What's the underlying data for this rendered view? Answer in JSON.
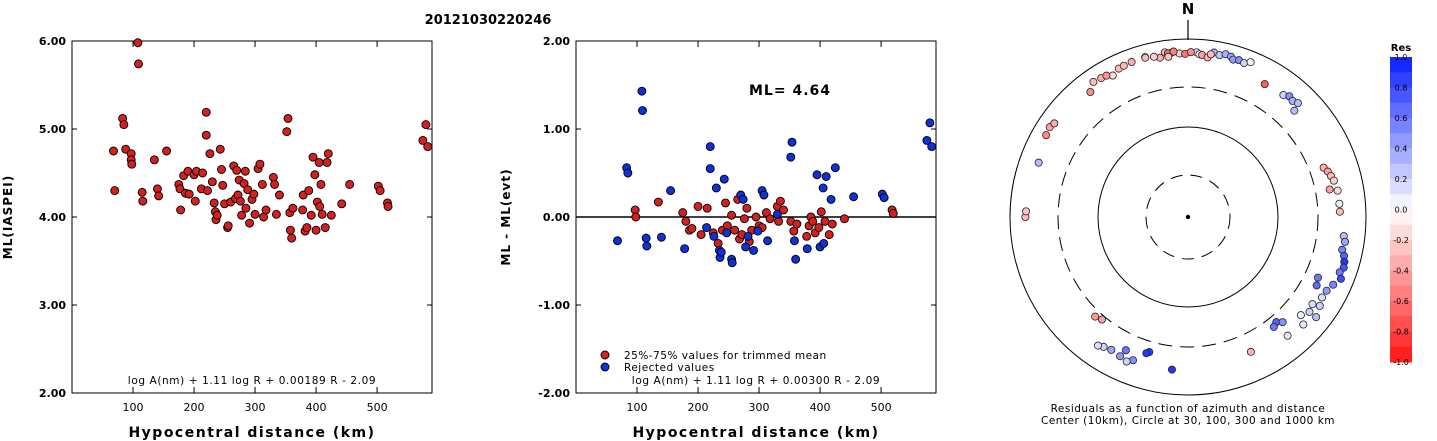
{
  "title": "20121030220246",
  "chart_data": [
    {
      "type": "scatter",
      "id": "left",
      "ylabel": "ML(IASPEI)",
      "xlabel": "Hypocentral distance (km)",
      "xlim": [
        0,
        590
      ],
      "ylim": [
        2.0,
        6.0
      ],
      "xticks": [
        100,
        200,
        300,
        400,
        500
      ],
      "yticks": [
        "2.00",
        "3.00",
        "4.00",
        "5.00",
        "6.00"
      ],
      "formula": "log A(nm) + 1.11 log R + 0.00189 R - 2.09",
      "colors": {
        "accepted": "#d42020",
        "rejected": "#1030d8"
      },
      "points_accepted": [
        [
          68,
          4.75
        ],
        [
          70,
          4.3
        ],
        [
          83,
          5.12
        ],
        [
          85,
          5.05
        ],
        [
          88,
          4.77
        ],
        [
          97,
          4.72
        ],
        [
          97,
          4.65
        ],
        [
          98,
          4.6
        ],
        [
          108,
          5.98
        ],
        [
          109,
          5.74
        ],
        [
          115,
          4.28
        ],
        [
          116,
          4.18
        ],
        [
          135,
          4.65
        ],
        [
          140,
          4.32
        ],
        [
          142,
          4.24
        ],
        [
          155,
          4.75
        ],
        [
          175,
          4.37
        ],
        [
          177,
          4.32
        ],
        [
          178,
          4.08
        ],
        [
          183,
          4.47
        ],
        [
          186,
          4.27
        ],
        [
          190,
          4.52
        ],
        [
          192,
          4.26
        ],
        [
          200,
          4.48
        ],
        [
          202,
          4.18
        ],
        [
          204,
          4.52
        ],
        [
          212,
          4.32
        ],
        [
          214,
          4.5
        ],
        [
          220,
          4.93
        ],
        [
          220,
          5.19
        ],
        [
          222,
          4.3
        ],
        [
          226,
          4.72
        ],
        [
          230,
          4.4
        ],
        [
          233,
          4.16
        ],
        [
          235,
          4.06
        ],
        [
          236,
          3.97
        ],
        [
          238,
          4.02
        ],
        [
          243,
          4.77
        ],
        [
          245,
          4.54
        ],
        [
          247,
          4.36
        ],
        [
          250,
          4.15
        ],
        [
          255,
          3.88
        ],
        [
          256,
          3.9
        ],
        [
          260,
          4.17
        ],
        [
          265,
          4.58
        ],
        [
          268,
          4.21
        ],
        [
          270,
          4.53
        ],
        [
          272,
          4.25
        ],
        [
          274,
          4.42
        ],
        [
          276,
          4.18
        ],
        [
          278,
          4.02
        ],
        [
          282,
          4.38
        ],
        [
          284,
          4.52
        ],
        [
          285,
          4.1
        ],
        [
          288,
          4.31
        ],
        [
          291,
          3.93
        ],
        [
          295,
          4.2
        ],
        [
          298,
          4.26
        ],
        [
          300,
          4.03
        ],
        [
          305,
          4.55
        ],
        [
          308,
          4.6
        ],
        [
          312,
          4.37
        ],
        [
          314,
          4.0
        ],
        [
          318,
          4.08
        ],
        [
          330,
          4.45
        ],
        [
          332,
          4.37
        ],
        [
          335,
          4.03
        ],
        [
          340,
          4.25
        ],
        [
          352,
          4.97
        ],
        [
          354,
          5.12
        ],
        [
          357,
          4.05
        ],
        [
          358,
          3.85
        ],
        [
          360,
          3.76
        ],
        [
          362,
          4.1
        ],
        [
          378,
          4.08
        ],
        [
          379,
          4.25
        ],
        [
          382,
          3.84
        ],
        [
          385,
          3.88
        ],
        [
          388,
          4.3
        ],
        [
          392,
          4.02
        ],
        [
          395,
          4.68
        ],
        [
          398,
          4.48
        ],
        [
          400,
          3.85
        ],
        [
          402,
          4.17
        ],
        [
          405,
          4.62
        ],
        [
          406,
          4.12
        ],
        [
          408,
          4.37
        ],
        [
          410,
          4.03
        ],
        [
          415,
          3.88
        ],
        [
          418,
          4.62
        ],
        [
          420,
          4.72
        ],
        [
          425,
          4.02
        ],
        [
          442,
          4.15
        ],
        [
          455,
          4.37
        ],
        [
          502,
          4.35
        ],
        [
          505,
          4.3
        ],
        [
          517,
          4.16
        ],
        [
          518,
          4.12
        ],
        [
          575,
          4.87
        ],
        [
          580,
          5.05
        ],
        [
          583,
          4.8
        ]
      ],
      "points_rejected": []
    },
    {
      "type": "scatter",
      "id": "middle",
      "ylabel": "ML - ML(evt)",
      "xlabel": "Hypocentral distance (km)",
      "xlim": [
        0,
        590
      ],
      "ylim": [
        -2.0,
        2.0
      ],
      "xticks": [
        100,
        200,
        300,
        400,
        500
      ],
      "yticks": [
        "-2.00",
        "-1.00",
        "0.00",
        "1.00",
        "2.00"
      ],
      "annotation": "ML= 4.64",
      "legend": [
        "25%-75% values for trimmed mean",
        "Rejected values"
      ],
      "legend_position": "bottom-left",
      "formula": "log A(nm) + 1.11 log R + 0.00300 R - 2.09",
      "zero_line": 0,
      "colors": {
        "accepted": "#d42020",
        "rejected": "#1030d8"
      },
      "points_accepted": [
        [
          97,
          0.08
        ],
        [
          98,
          0.0
        ],
        [
          135,
          0.17
        ],
        [
          175,
          0.05
        ],
        [
          180,
          -0.05
        ],
        [
          186,
          -0.15
        ],
        [
          190,
          -0.13
        ],
        [
          200,
          0.12
        ],
        [
          205,
          -0.2
        ],
        [
          215,
          0.1
        ],
        [
          225,
          -0.18
        ],
        [
          233,
          -0.3
        ],
        [
          240,
          -0.15
        ],
        [
          245,
          0.16
        ],
        [
          248,
          -0.1
        ],
        [
          255,
          0.02
        ],
        [
          260,
          -0.15
        ],
        [
          265,
          0.2
        ],
        [
          268,
          -0.25
        ],
        [
          272,
          -0.2
        ],
        [
          276,
          -0.02
        ],
        [
          280,
          0.1
        ],
        [
          284,
          -0.28
        ],
        [
          288,
          -0.15
        ],
        [
          295,
          0.0
        ],
        [
          300,
          -0.1
        ],
        [
          305,
          -0.12
        ],
        [
          312,
          0.05
        ],
        [
          318,
          -0.02
        ],
        [
          330,
          0.12
        ],
        [
          332,
          -0.05
        ],
        [
          335,
          0.18
        ],
        [
          340,
          0.08
        ],
        [
          352,
          -0.05
        ],
        [
          357,
          -0.16
        ],
        [
          362,
          -0.08
        ],
        [
          378,
          -0.22
        ],
        [
          382,
          -0.1
        ],
        [
          385,
          0.0
        ],
        [
          388,
          -0.05
        ],
        [
          392,
          -0.18
        ],
        [
          398,
          -0.12
        ],
        [
          402,
          0.06
        ],
        [
          408,
          -0.05
        ],
        [
          415,
          -0.2
        ],
        [
          420,
          -0.08
        ],
        [
          440,
          -0.02
        ],
        [
          518,
          0.08
        ],
        [
          520,
          0.04
        ]
      ],
      "points_rejected": [
        [
          68,
          -0.27
        ],
        [
          83,
          0.56
        ],
        [
          85,
          0.5
        ],
        [
          108,
          1.43
        ],
        [
          109,
          1.21
        ],
        [
          115,
          -0.24
        ],
        [
          116,
          -0.33
        ],
        [
          140,
          -0.23
        ],
        [
          155,
          0.3
        ],
        [
          178,
          -0.36
        ],
        [
          214,
          -0.12
        ],
        [
          220,
          0.8
        ],
        [
          220,
          0.55
        ],
        [
          226,
          -0.22
        ],
        [
          230,
          0.33
        ],
        [
          235,
          -0.38
        ],
        [
          236,
          -0.46
        ],
        [
          238,
          -0.4
        ],
        [
          243,
          0.43
        ],
        [
          247,
          -0.18
        ],
        [
          255,
          -0.48
        ],
        [
          256,
          -0.52
        ],
        [
          270,
          0.25
        ],
        [
          274,
          0.2
        ],
        [
          278,
          -0.34
        ],
        [
          282,
          -0.22
        ],
        [
          291,
          -0.38
        ],
        [
          298,
          -0.16
        ],
        [
          305,
          0.3
        ],
        [
          308,
          0.25
        ],
        [
          314,
          -0.27
        ],
        [
          330,
          0.03
        ],
        [
          354,
          0.85
        ],
        [
          352,
          0.68
        ],
        [
          358,
          -0.27
        ],
        [
          360,
          -0.48
        ],
        [
          379,
          -0.36
        ],
        [
          395,
          0.48
        ],
        [
          400,
          -0.34
        ],
        [
          405,
          0.33
        ],
        [
          406,
          -0.3
        ],
        [
          410,
          0.46
        ],
        [
          418,
          0.2
        ],
        [
          425,
          0.56
        ],
        [
          455,
          0.23
        ],
        [
          502,
          0.26
        ],
        [
          505,
          0.22
        ],
        [
          575,
          0.87
        ],
        [
          580,
          1.07
        ],
        [
          583,
          0.8
        ]
      ]
    },
    {
      "type": "polar-scatter",
      "id": "right",
      "north_label": "N",
      "caption_line1": "Residuals as a function of azimuth and distance",
      "caption_line2": "Center (10km), Circle at 30, 100, 300 and 1000 km",
      "colorbar_title": "Res",
      "colorbar_ticks": [
        "1.0",
        "0.8",
        "0.6",
        "0.4",
        "0.2",
        "0.0",
        "-0.2",
        "-0.4",
        "-0.6",
        "-0.8",
        "-1.0"
      ],
      "rings_km": [
        30,
        100,
        300,
        1000
      ],
      "rings_style": [
        "dashed",
        "solid",
        "dashed",
        "solid"
      ],
      "points_az_dist_res": [
        [
          3,
          720,
          0.15
        ],
        [
          4,
          690,
          0.05
        ],
        [
          9,
          750,
          0.3
        ],
        [
          11,
          720,
          0.25
        ],
        [
          13,
          760,
          0.35
        ],
        [
          15,
          740,
          0.4
        ],
        [
          16,
          700,
          0.45
        ],
        [
          18,
          720,
          0.5
        ],
        [
          20,
          700,
          0.2
        ],
        [
          22,
          760,
          0.05
        ],
        [
          -5,
          740,
          -0.4
        ],
        [
          -3,
          700,
          -0.2
        ],
        [
          -6,
          720,
          -0.45
        ],
        [
          -8,
          745,
          -0.3
        ],
        [
          -15,
          730,
          -0.55
        ],
        [
          -25,
          700,
          -0.3
        ],
        [
          -28,
          640,
          -0.15
        ],
        [
          -38,
          615,
          -0.5
        ],
        [
          -10,
          665,
          -0.35
        ],
        [
          -12,
          700,
          -0.2
        ],
        [
          -1,
          690,
          -0.6
        ],
        [
          1,
          720,
          -0.5
        ],
        [
          5,
          680,
          -0.4
        ],
        [
          7,
          650,
          -0.35
        ],
        [
          8,
          710,
          -0.3
        ],
        [
          30,
          540,
          -0.7
        ],
        [
          38,
          560,
          0.2
        ],
        [
          40,
          600,
          0.5
        ],
        [
          42,
          580,
          0.35
        ],
        [
          44,
          610,
          0.3
        ],
        [
          45,
          500,
          0.3
        ],
        [
          70,
          430,
          -0.35
        ],
        [
          72,
          460,
          -0.4
        ],
        [
          74,
          480,
          -0.3
        ],
        [
          76,
          500,
          -0.2
        ],
        [
          79,
          430,
          -0.4
        ],
        [
          80,
          520,
          -0.15
        ],
        [
          85,
          520,
          0.05
        ],
        [
          88,
          520,
          -0.3
        ],
        [
          97,
          590,
          0.3
        ],
        [
          99,
          620,
          0.4
        ],
        [
          102,
          600,
          0.55
        ],
        [
          104,
          650,
          0.7
        ],
        [
          106,
          680,
          0.9
        ],
        [
          108,
          700,
          0.75
        ],
        [
          110,
          660,
          0.6
        ],
        [
          112,
          720,
          0.8
        ],
        [
          115,
          640,
          0.55
        ],
        [
          118,
          590,
          0.45
        ],
        [
          121,
          580,
          0.15
        ],
        [
          124,
          620,
          0.2
        ],
        [
          128,
          680,
          0.3
        ],
        [
          131,
          490,
          0.1
        ],
        [
          128,
          550,
          0.2
        ],
        [
          125,
          520,
          0.15
        ],
        [
          133,
          600,
          0.1
        ],
        [
          140,
          560,
          0.1
        ],
        [
          155,
          480,
          -0.35
        ],
        [
          115,
          420,
          0.6
        ],
        [
          118,
          445,
          0.65
        ],
        [
          140,
          360,
          0.7
        ],
        [
          142,
          380,
          0.6
        ],
        [
          138,
          400,
          0.5
        ],
        [
          196,
          390,
          0.85
        ],
        [
          197,
          410,
          0.9
        ],
        [
          205,
          460,
          0.6
        ],
        [
          201,
          540,
          0.5
        ],
        [
          206,
          560,
          0.45
        ],
        [
          210,
          540,
          0.4
        ],
        [
          213,
          560,
          0.2
        ],
        [
          215,
          590,
          0.15
        ],
        [
          186,
          540,
          0.9
        ],
        [
          203,
          590,
          0.2
        ],
        [
          220,
          330,
          -0.4
        ],
        [
          223,
          350,
          -0.45
        ],
        [
          270,
          680,
          -0.3
        ],
        [
          272,
          670,
          -0.25
        ],
        [
          290,
          620,
          0.3
        ],
        [
          300,
          700,
          -0.5
        ],
        [
          303,
          720,
          -0.4
        ],
        [
          305,
          690,
          -0.35
        ],
        [
          325,
          720,
          -0.3
        ],
        [
          328,
          700,
          -0.35
        ],
        [
          330,
          690,
          -0.45
        ],
        [
          337,
          710,
          -0.3
        ],
        [
          340,
          720,
          -0.35
        ],
        [
          345,
          720,
          -0.3
        ],
        [
          353,
          720,
          -0.6
        ],
        [
          355,
          740,
          -0.55
        ],
        [
          -7,
          660,
          -0.25
        ]
      ]
    }
  ]
}
